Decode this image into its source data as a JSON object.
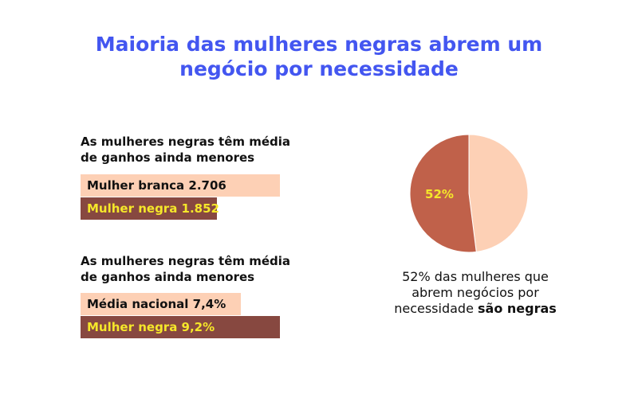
{
  "title": {
    "line1": "Maioria das mulheres negras abrem um",
    "line2": "negócio por necessidade"
  },
  "colors": {
    "title": "#4356f0",
    "light_bar": "#fdd0b5",
    "dark_bar": "#874840",
    "dark_bar_text": "#f5e72a",
    "pie_small": "#fdd0b5",
    "pie_large": "#c0614a",
    "pie_label": "#f5e72a"
  },
  "chart_data": [
    {
      "type": "bar",
      "title_line1": "As mulheres negras têm média",
      "title_line2": "de ganhos ainda menores",
      "series": [
        {
          "name": "Mulher branca",
          "value": 2706,
          "label": "Mulher branca 2.706"
        },
        {
          "name": "Mulher negra",
          "value": 1852,
          "label": "Mulher negra 1.852"
        }
      ]
    },
    {
      "type": "bar",
      "title_line1": "As mulheres negras têm média",
      "title_line2": "de ganhos ainda menores",
      "series": [
        {
          "name": "Média nacional",
          "value": 7.4,
          "label": "Média nacional 7,4%"
        },
        {
          "name": "Mulher negra",
          "value": 9.2,
          "label": "Mulher negra 9,2%"
        }
      ]
    },
    {
      "type": "pie",
      "slices": [
        {
          "name": "negras",
          "value": 52,
          "label": "52%"
        },
        {
          "name": "outras",
          "value": 48
        }
      ],
      "caption_line1": "52% das mulheres que",
      "caption_line2": "abrem negócios por",
      "caption_line3_normal": "necessidade ",
      "caption_line3_bold": "são negras"
    }
  ]
}
